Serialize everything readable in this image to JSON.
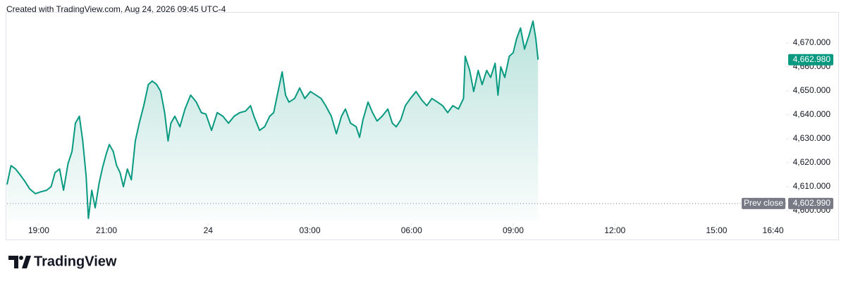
{
  "header": {
    "text": "Created with TradingView.com, Aug 24, 2026 09:45 UTC-4"
  },
  "brand": {
    "text": "TradingView"
  },
  "chart_data": {
    "type": "area",
    "x": [
      -356,
      -349,
      -341,
      -333,
      -324,
      -316,
      -306,
      -296,
      -286,
      -278,
      -271,
      -263,
      -256,
      -248,
      -241,
      -235,
      -228,
      -222,
      -216,
      -212,
      -206,
      -200,
      -193,
      -187,
      -181,
      -175,
      -168,
      -162,
      -156,
      -150,
      -143,
      -136,
      -129,
      -122,
      -114,
      -106,
      -99,
      -91,
      -84,
      -77,
      -71,
      -66,
      -59,
      -50,
      -41,
      -31,
      -21,
      -12,
      -4,
      6,
      16,
      26,
      36,
      46,
      56,
      66,
      75,
      81,
      91,
      100,
      109,
      116,
      125,
      131,
      137,
      143,
      153,
      162,
      171,
      181,
      191,
      200,
      208,
      218,
      227,
      236,
      243,
      252,
      262,
      268,
      274,
      283,
      291,
      299,
      308,
      318,
      326,
      333,
      341,
      349,
      358,
      368,
      378,
      387,
      396,
      406,
      415,
      424,
      433,
      443,
      452,
      455,
      463,
      470,
      478,
      485,
      493,
      500,
      508,
      513,
      518,
      525,
      533,
      540,
      546,
      553,
      560,
      568,
      575,
      580,
      584
    ],
    "series": [
      {
        "color": "#089981",
        "values": [
          4610.9,
          4618.8,
          4617.4,
          4615.0,
          4612.1,
          4609.1,
          4607.1,
          4607.9,
          4608.5,
          4610.0,
          4615.9,
          4617.4,
          4608.5,
          4619.7,
          4624.7,
          4636.5,
          4639.4,
          4629.1,
          4614.4,
          4596.8,
          4608.5,
          4601.2,
          4611.5,
          4617.9,
          4623.2,
          4627.6,
          4624.7,
          4618.8,
          4615.9,
          4610.0,
          4617.4,
          4612.9,
          4629.1,
          4636.5,
          4643.8,
          4652.6,
          4654.1,
          4652.6,
          4649.7,
          4640.9,
          4629.1,
          4636.5,
          4639.4,
          4635.0,
          4642.4,
          4648.2,
          4645.3,
          4640.9,
          4640.3,
          4633.5,
          4640.9,
          4639.4,
          4636.5,
          4639.4,
          4640.9,
          4641.5,
          4643.8,
          4639.4,
          4633.5,
          4635.0,
          4639.4,
          4640.9,
          4651.2,
          4657.9,
          4648.2,
          4645.3,
          4646.8,
          4651.2,
          4646.8,
          4649.7,
          4648.2,
          4646.8,
          4643.8,
          4639.4,
          4632.1,
          4639.4,
          4642.4,
          4636.5,
          4635.0,
          4630.6,
          4637.9,
          4645.3,
          4640.9,
          4637.4,
          4639.4,
          4642.4,
          4636.5,
          4635.0,
          4637.9,
          4643.8,
          4646.8,
          4649.7,
          4646.2,
          4643.8,
          4646.8,
          4645.3,
          4643.8,
          4640.9,
          4643.8,
          4642.4,
          4646.8,
          4664.4,
          4658.5,
          4649.7,
          4658.5,
          4652.6,
          4658.5,
          4655.6,
          4661.5,
          4648.2,
          4660.0,
          4655.6,
          4664.4,
          4665.9,
          4671.8,
          4676.2,
          4667.4,
          4673.2,
          4679.1,
          4671.8,
          4662.98
        ]
      }
    ],
    "xlim": [
      -356,
      1023
    ],
    "xticks": [
      {
        "value": -300,
        "label": "19:00"
      },
      {
        "value": -180,
        "label": "21:00"
      },
      {
        "value": 0,
        "label": "24"
      },
      {
        "value": 180,
        "label": "03:00"
      },
      {
        "value": 360,
        "label": "06:00"
      },
      {
        "value": 540,
        "label": "09:00"
      },
      {
        "value": 720,
        "label": "12:00"
      },
      {
        "value": 900,
        "label": "15:00"
      },
      {
        "value": 1000,
        "label": "16:40"
      }
    ],
    "ylim": [
      4595.9,
      4682.6
    ],
    "yticks": [
      {
        "value": 4600,
        "label": "4,600.000"
      },
      {
        "value": 4610,
        "label": "4,610.000"
      },
      {
        "value": 4620,
        "label": "4,620.000"
      },
      {
        "value": 4630,
        "label": "4,630.000"
      },
      {
        "value": 4640,
        "label": "4,640.000"
      },
      {
        "value": 4650,
        "label": "4,650.000"
      },
      {
        "value": 4660,
        "label": "4,660.000"
      },
      {
        "value": 4670,
        "label": "4,670.000"
      }
    ],
    "last_price": {
      "value": 4662.98,
      "label": "4,662.980",
      "color": "#089981"
    },
    "prev_close": {
      "name": "Prev close",
      "value": 4602.99,
      "label": "4,602.990",
      "color": "#787b86"
    }
  }
}
